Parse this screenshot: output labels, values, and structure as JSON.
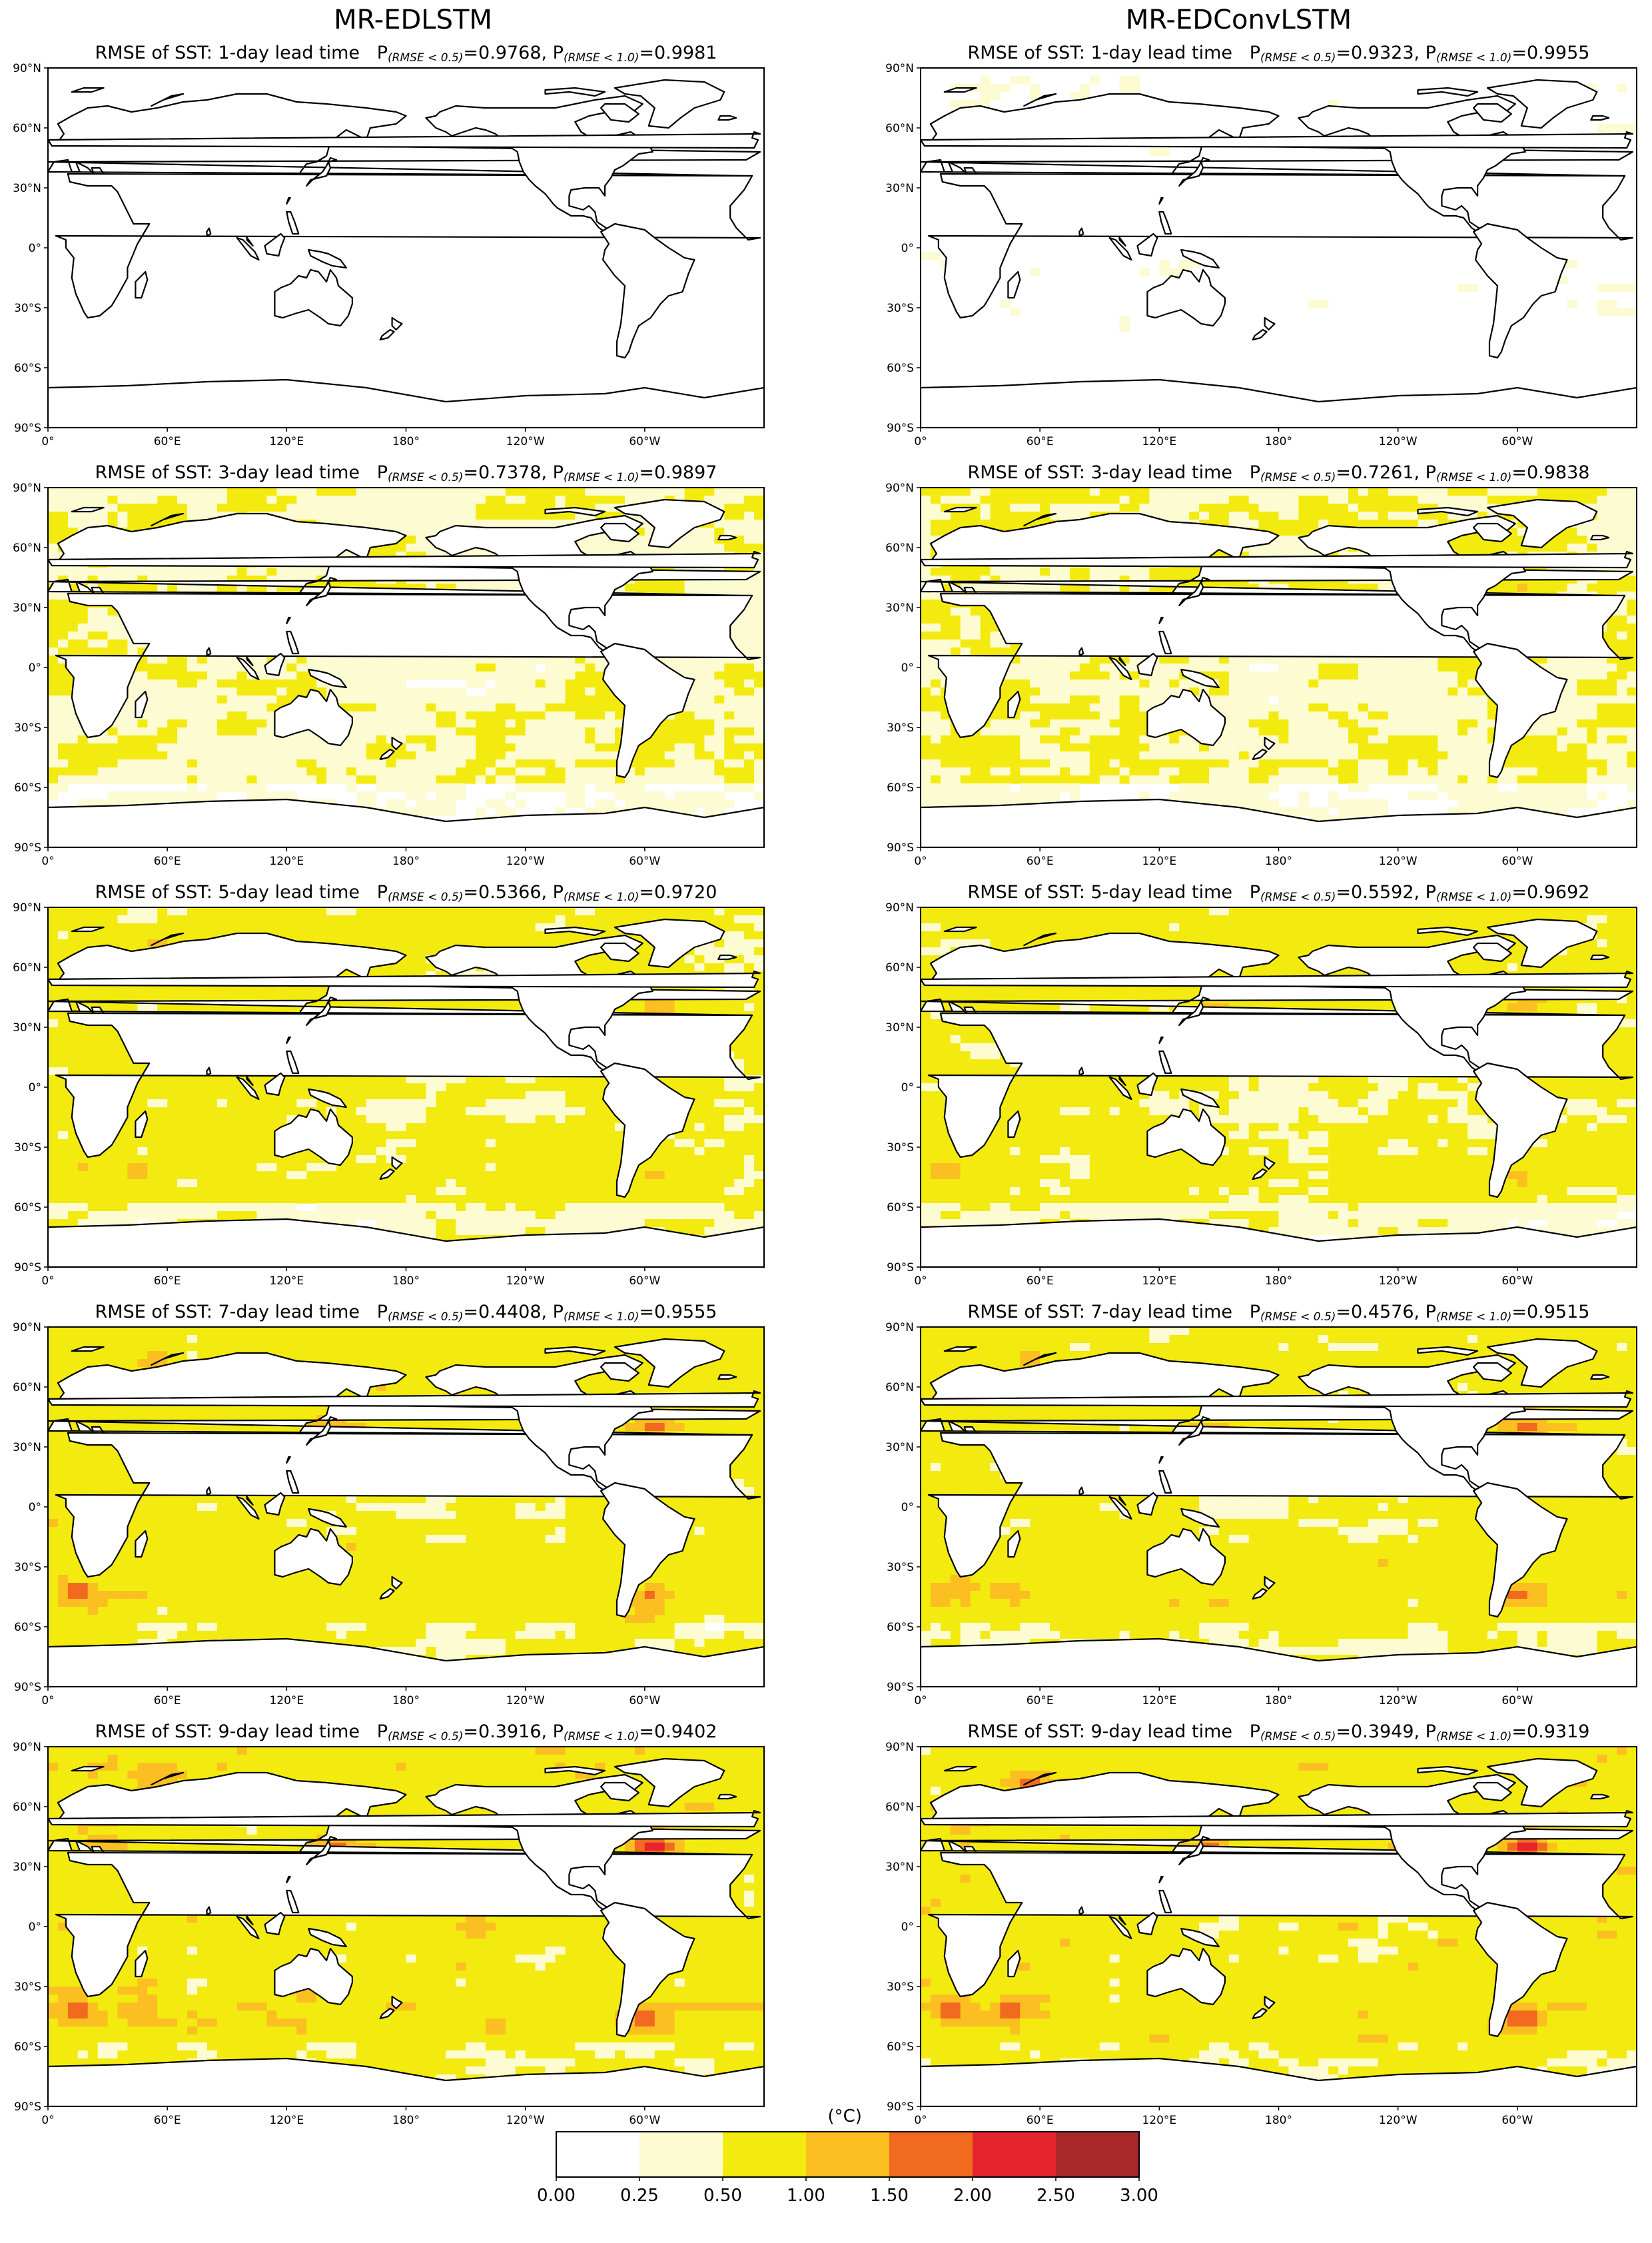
{
  "columns": [
    {
      "title": "MR-EDLSTM"
    },
    {
      "title": "MR-EDConvLSTM"
    }
  ],
  "panel_title_parts": {
    "prefix": "RMSE of SST: ",
    "lead_suffix": "-day lead time",
    "p_symbol": "P",
    "sub_05": "(RMSE < 0.5)",
    "sub_10": "(RMSE < 1.0)"
  },
  "lat_ticks": [
    "90°N",
    "60°N",
    "30°N",
    "0°",
    "30°S",
    "60°S",
    "90°S"
  ],
  "lon_ticks": [
    "0°",
    "60°E",
    "120°E",
    "180°",
    "120°W",
    "60°W"
  ],
  "colorbar": {
    "unit": "(°C)",
    "ticks": [
      "0.00",
      "0.25",
      "0.50",
      "1.00",
      "1.50",
      "2.00",
      "2.50",
      "3.00"
    ],
    "colors": [
      "#ffffff",
      "#fdfbd2",
      "#f3eb10",
      "#fbbf22",
      "#f26a1f",
      "#e5242b",
      "#a8282b"
    ]
  },
  "land_color": "#ffffff",
  "coast_color": "#000000",
  "chart_data": [
    {
      "type": "heatmap",
      "model": "MR-EDLSTM",
      "lead_days": 1,
      "p_rmse_lt_05": "0.9768",
      "p_rmse_lt_10": "0.9981",
      "level": 0.08,
      "hot": 0.0
    },
    {
      "type": "heatmap",
      "model": "MR-EDConvLSTM",
      "lead_days": 1,
      "p_rmse_lt_05": "0.9323",
      "p_rmse_lt_10": "0.9955",
      "level": 0.12,
      "hot": 0.0
    },
    {
      "type": "heatmap",
      "model": "MR-EDLSTM",
      "lead_days": 3,
      "p_rmse_lt_05": "0.7378",
      "p_rmse_lt_10": "0.9897",
      "level": 0.42,
      "hot": 0.15
    },
    {
      "type": "heatmap",
      "model": "MR-EDConvLSTM",
      "lead_days": 3,
      "p_rmse_lt_05": "0.7261",
      "p_rmse_lt_10": "0.9838",
      "level": 0.44,
      "hot": 0.2
    },
    {
      "type": "heatmap",
      "model": "MR-EDLSTM",
      "lead_days": 5,
      "p_rmse_lt_05": "0.5366",
      "p_rmse_lt_10": "0.9720",
      "level": 0.62,
      "hot": 0.35
    },
    {
      "type": "heatmap",
      "model": "MR-EDConvLSTM",
      "lead_days": 5,
      "p_rmse_lt_05": "0.5592",
      "p_rmse_lt_10": "0.9692",
      "level": 0.6,
      "hot": 0.38
    },
    {
      "type": "heatmap",
      "model": "MR-EDLSTM",
      "lead_days": 7,
      "p_rmse_lt_05": "0.4408",
      "p_rmse_lt_10": "0.9555",
      "level": 0.74,
      "hot": 0.5
    },
    {
      "type": "heatmap",
      "model": "MR-EDConvLSTM",
      "lead_days": 7,
      "p_rmse_lt_05": "0.4576",
      "p_rmse_lt_10": "0.9515",
      "level": 0.72,
      "hot": 0.55
    },
    {
      "type": "heatmap",
      "model": "MR-EDLSTM",
      "lead_days": 9,
      "p_rmse_lt_05": "0.3916",
      "p_rmse_lt_10": "0.9402",
      "level": 0.8,
      "hot": 0.7
    },
    {
      "type": "heatmap",
      "model": "MR-EDConvLSTM",
      "lead_days": 9,
      "p_rmse_lt_05": "0.3949",
      "p_rmse_lt_10": "0.9319",
      "level": 0.8,
      "hot": 0.75
    }
  ]
}
